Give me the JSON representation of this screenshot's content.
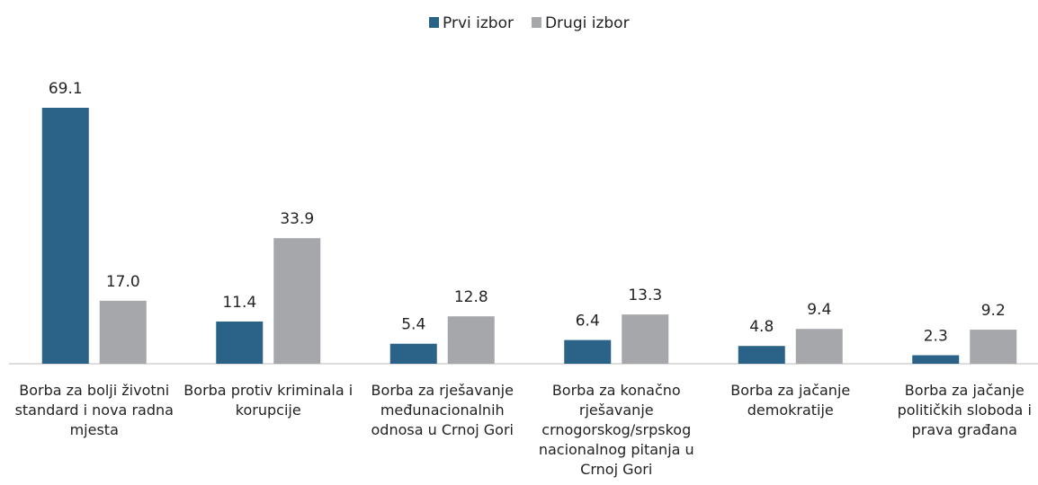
{
  "chart_data": {
    "type": "bar",
    "categories": [
      "Borba za bolji životni standard i nova radna mjesta",
      "Borba protiv kriminala i korupcije",
      "Borba za rješavanje međunacionalnih odnosa u Crnoj Gori",
      "Borba za konačno rješavanje crnogorskog/srpskog nacionalnog pitanja u Crnoj Gori",
      "Borba za jačanje demokratije",
      "Borba za jačanje političkih sloboda i prava građana"
    ],
    "series": [
      {
        "name": "Prvi izbor",
        "color": "#2a6387",
        "values": [
          69.1,
          11.4,
          5.4,
          6.4,
          4.8,
          2.3
        ]
      },
      {
        "name": "Drugi izbor",
        "color": "#a5a7aa",
        "values": [
          17,
          33.9,
          12.8,
          13.3,
          9.4,
          9.2
        ],
        "value_labels": [
          "17.0",
          "33.9",
          "12.8",
          "13.3",
          "9.4",
          "9.2"
        ]
      }
    ],
    "legend": "top"
  }
}
